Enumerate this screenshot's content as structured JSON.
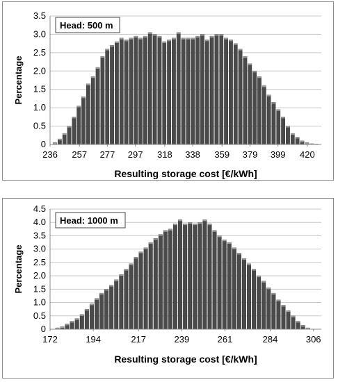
{
  "chart_data": [
    {
      "type": "bar",
      "annotation": "Head: 500 m",
      "xlabel": "Resulting storage cost [€/kWh]",
      "ylabel": "Percentage",
      "xlim": [
        236,
        430
      ],
      "ylim": [
        0,
        3.5
      ],
      "yticks": [
        0,
        0.5,
        1.0,
        1.5,
        2.0,
        2.5,
        3.0,
        3.5
      ],
      "ytick_labels": [
        "0",
        "0.5",
        "1.0",
        "1.5",
        "2.0",
        "2.5",
        "3.0",
        "3.5"
      ],
      "xticks": [
        236,
        257,
        277,
        297,
        318,
        338,
        359,
        379,
        399,
        420
      ],
      "xtick_labels": [
        "236",
        "257",
        "277",
        "297",
        "318",
        "338",
        "359",
        "379",
        "399",
        "420"
      ],
      "grid": true,
      "bar_color": "#4a4a4a",
      "x": [
        239.5,
        242.9,
        246.3,
        249.7,
        253.1,
        256.5,
        259.9,
        263.3,
        266.7,
        270.1,
        273.5,
        276.9,
        280.3,
        283.7,
        287.1,
        290.5,
        293.9,
        297.3,
        300.7,
        304.1,
        307.5,
        310.9,
        314.3,
        317.7,
        321.1,
        324.5,
        327.9,
        331.3,
        334.7,
        338.1,
        341.5,
        344.9,
        348.3,
        351.7,
        355.1,
        358.5,
        361.9,
        365.3,
        368.7,
        372.1,
        375.5,
        378.9,
        382.3,
        385.7,
        389.1,
        392.5,
        395.9,
        399.3,
        402.7,
        406.1,
        409.5,
        412.9,
        416.3,
        419.7,
        423.1,
        426.5
      ],
      "values": [
        0.05,
        0.15,
        0.3,
        0.5,
        0.75,
        1.05,
        1.3,
        1.65,
        1.85,
        2.1,
        2.4,
        2.6,
        2.7,
        2.8,
        2.9,
        2.85,
        2.9,
        2.95,
        2.9,
        2.95,
        3.05,
        3.0,
        2.95,
        2.8,
        2.85,
        2.9,
        3.05,
        2.9,
        2.9,
        2.9,
        2.95,
        3.0,
        2.85,
        2.95,
        3.0,
        3.0,
        2.9,
        2.85,
        2.75,
        2.6,
        2.4,
        2.2,
        2.0,
        1.85,
        1.6,
        1.35,
        1.15,
        0.95,
        0.75,
        0.5,
        0.3,
        0.2,
        0.1,
        0.05,
        0.02,
        0.01
      ]
    },
    {
      "type": "bar",
      "annotation": "Head: 1000 m",
      "xlabel": "Resulting storage cost [€/kWh]",
      "ylabel": "Percentage",
      "xlim": [
        172,
        310
      ],
      "ylim": [
        0,
        4.5
      ],
      "yticks": [
        0,
        0.5,
        1.0,
        1.5,
        2.0,
        2.5,
        3.0,
        3.5,
        4.0,
        4.5
      ],
      "ytick_labels": [
        "0",
        "0.5",
        "1.0",
        "1.5",
        "2.0",
        "2.5",
        "3.0",
        "3.5",
        "4.0",
        "4.5"
      ],
      "xticks": [
        172,
        194,
        217,
        239,
        261,
        284,
        306
      ],
      "xtick_labels": [
        "172",
        "194",
        "217",
        "239",
        "261",
        "284",
        "306"
      ],
      "grid": true,
      "bar_color": "#4a4a4a",
      "x": [
        175.7,
        178.2,
        180.7,
        183.2,
        185.7,
        188.2,
        190.7,
        193.2,
        195.7,
        198.2,
        200.7,
        203.2,
        205.7,
        208.2,
        210.7,
        213.2,
        215.7,
        218.2,
        220.7,
        223.2,
        225.7,
        228.2,
        230.7,
        233.2,
        235.7,
        238.2,
        240.7,
        243.2,
        245.7,
        248.2,
        250.7,
        253.2,
        255.7,
        258.2,
        260.7,
        263.2,
        265.7,
        268.2,
        270.7,
        273.2,
        275.7,
        278.2,
        280.7,
        283.2,
        285.7,
        288.2,
        290.7,
        293.2,
        295.7,
        298.2,
        300.7,
        303.2
      ],
      "values": [
        0.05,
        0.1,
        0.2,
        0.3,
        0.4,
        0.55,
        0.75,
        0.95,
        1.15,
        1.35,
        1.5,
        1.65,
        1.85,
        2.05,
        2.25,
        2.45,
        2.7,
        2.9,
        3.05,
        3.25,
        3.4,
        3.55,
        3.7,
        3.75,
        3.95,
        4.1,
        3.95,
        4.0,
        3.95,
        4.0,
        4.1,
        3.95,
        3.7,
        3.5,
        3.35,
        3.25,
        3.05,
        2.85,
        2.65,
        2.45,
        2.25,
        2.0,
        1.8,
        1.55,
        1.35,
        1.1,
        0.9,
        0.7,
        0.5,
        0.3,
        0.15,
        0.05
      ]
    }
  ]
}
